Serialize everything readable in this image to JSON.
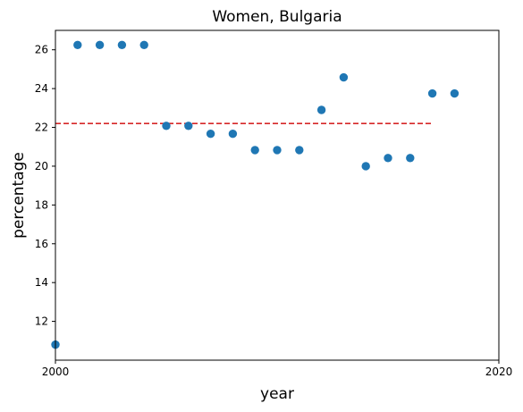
{
  "chart_data": {
    "type": "scatter",
    "title": "Women, Bulgaria",
    "xlabel": "year",
    "ylabel": "percentage",
    "xlim": [
      2000,
      2020
    ],
    "ylim": [
      10,
      27
    ],
    "xticks": [
      2000,
      2020
    ],
    "yticks": [
      12,
      14,
      16,
      18,
      20,
      22,
      24,
      26
    ],
    "grid": false,
    "series": [
      {
        "x": [
          2000,
          2001,
          2002,
          2003,
          2004,
          2005,
          2006,
          2007,
          2008,
          2009,
          2010,
          2011,
          2012,
          2013,
          2014,
          2015,
          2016,
          2017,
          2018
        ],
        "y": [
          10.8,
          26.25,
          26.25,
          26.25,
          26.25,
          22.08,
          22.08,
          21.67,
          21.67,
          20.83,
          20.83,
          20.83,
          22.9,
          24.58,
          20.0,
          20.42,
          20.42,
          23.75,
          23.75
        ],
        "color": "#1f77b4"
      }
    ],
    "trend_line": {
      "x": [
        2000,
        2017
      ],
      "y": [
        22.2,
        22.2
      ],
      "color": "#d62728",
      "style": "dashed"
    }
  }
}
